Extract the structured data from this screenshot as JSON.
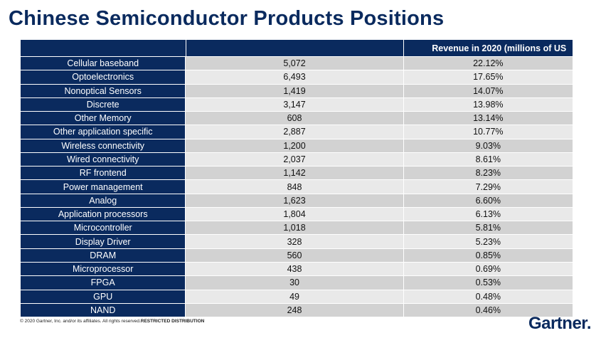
{
  "title": "Chinese Semiconductor Products Positions",
  "table": {
    "headers": [
      "",
      "",
      "Revenue in 2020 (millions of US"
    ],
    "rows": [
      {
        "product": "Cellular baseband",
        "revenue": "5,072",
        "share": "22.12%"
      },
      {
        "product": "Optoelectronics",
        "revenue": "6,493",
        "share": "17.65%"
      },
      {
        "product": "Nonoptical Sensors",
        "revenue": "1,419",
        "share": "14.07%"
      },
      {
        "product": "Discrete",
        "revenue": "3,147",
        "share": "13.98%"
      },
      {
        "product": "Other Memory",
        "revenue": "608",
        "share": "13.14%"
      },
      {
        "product": "Other application specific",
        "revenue": "2,887",
        "share": "10.77%"
      },
      {
        "product": "Wireless connectivity",
        "revenue": "1,200",
        "share": "9.03%"
      },
      {
        "product": "Wired connectivity",
        "revenue": "2,037",
        "share": "8.61%"
      },
      {
        "product": "RF frontend",
        "revenue": "1,142",
        "share": "8.23%"
      },
      {
        "product": "Power management",
        "revenue": "848",
        "share": "7.29%"
      },
      {
        "product": "Analog",
        "revenue": "1,623",
        "share": "6.60%"
      },
      {
        "product": "Application processors",
        "revenue": "1,804",
        "share": "6.13%"
      },
      {
        "product": "Microcontroller",
        "revenue": "1,018",
        "share": "5.81%"
      },
      {
        "product": "Display Driver",
        "revenue": "328",
        "share": "5.23%"
      },
      {
        "product": "DRAM",
        "revenue": "560",
        "share": "0.85%"
      },
      {
        "product": "Microprocessor",
        "revenue": "438",
        "share": "0.69%"
      },
      {
        "product": "FPGA",
        "revenue": "30",
        "share": "0.53%"
      },
      {
        "product": "GPU",
        "revenue": "49",
        "share": "0.48%"
      },
      {
        "product": "NAND",
        "revenue": "248",
        "share": "0.46%"
      }
    ]
  },
  "footer": {
    "copyright": "© 2020 Gartner, Inc. and/or its affiliates. All rights reserved.",
    "restricted": "RESTRICTED DISTRIBUTION"
  },
  "logo": {
    "text": "Gartner",
    "mark": "."
  },
  "colors": {
    "brand_navy": "#0a2a5e",
    "row_dark": "#d2d2d2",
    "row_light": "#e9e9e9"
  }
}
